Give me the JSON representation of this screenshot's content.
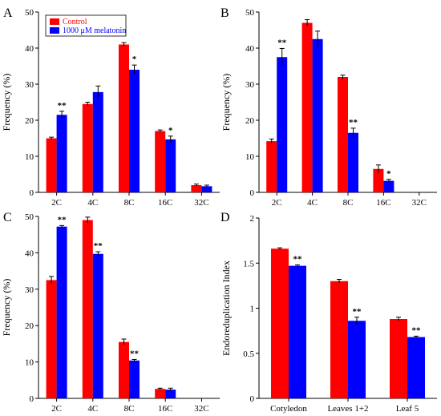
{
  "colors": {
    "control": "#ff0000",
    "melatonin": "#0000ff"
  },
  "legend": {
    "control_label": "Control",
    "melatonin_label": "1000 μM melatonin"
  },
  "chart_data": [
    {
      "panel": "A",
      "type": "bar",
      "ylabel": "Frequency (%)",
      "ylim": [
        0,
        50
      ],
      "yticks": [
        0,
        10,
        20,
        30,
        40,
        50
      ],
      "categories": [
        "2C",
        "4C",
        "8C",
        "16C",
        "32C"
      ],
      "series": [
        {
          "name": "Control",
          "values": [
            15,
            24.5,
            41,
            17,
            2
          ],
          "errors": [
            0.3,
            0.5,
            0.5,
            0.3,
            0.3
          ]
        },
        {
          "name": "1000 μM melatonin",
          "values": [
            21.5,
            27.8,
            34,
            14.7,
            1.7
          ],
          "errors": [
            1.0,
            1.7,
            1.3,
            0.9,
            0.3
          ]
        }
      ],
      "significance": [
        "**",
        "",
        "*",
        "*",
        ""
      ]
    },
    {
      "panel": "B",
      "type": "bar",
      "ylabel": "Frequency (%)",
      "ylim": [
        0,
        50
      ],
      "yticks": [
        0,
        10,
        20,
        30,
        40,
        50
      ],
      "categories": [
        "2C",
        "4C",
        "8C",
        "16C",
        "32C"
      ],
      "series": [
        {
          "name": "Control",
          "values": [
            14.2,
            47,
            32,
            6.5,
            0
          ],
          "errors": [
            0.6,
            0.9,
            0.5,
            1.1,
            0
          ]
        },
        {
          "name": "1000 μM melatonin",
          "values": [
            37.5,
            42.5,
            16.5,
            3.2,
            0
          ],
          "errors": [
            2.4,
            2.2,
            1.3,
            0.4,
            0
          ]
        }
      ],
      "significance": [
        "**",
        "",
        "**",
        "*",
        ""
      ]
    },
    {
      "panel": "C",
      "type": "bar",
      "ylabel": "Frequency (%)",
      "ylim": [
        0,
        50
      ],
      "yticks": [
        0,
        10,
        20,
        30,
        40,
        50
      ],
      "categories": [
        "2C",
        "4C",
        "8C",
        "16C",
        "32C"
      ],
      "series": [
        {
          "name": "Control",
          "values": [
            32.5,
            49,
            15.5,
            2.6,
            0
          ],
          "errors": [
            1.0,
            0.8,
            0.8,
            0.2,
            0
          ]
        },
        {
          "name": "1000 μM melatonin",
          "values": [
            47.2,
            39.7,
            10.4,
            2.4,
            0
          ],
          "errors": [
            0.3,
            0.6,
            0.3,
            0.4,
            0
          ]
        }
      ],
      "significance": [
        "**",
        "**",
        "**",
        "",
        ""
      ]
    },
    {
      "panel": "D",
      "type": "bar",
      "ylabel": "Endoreduplication Index",
      "ylim": [
        0,
        2
      ],
      "yticks": [
        0,
        0.5,
        1,
        1.5,
        2
      ],
      "categories": [
        "Cotyledon",
        "Leaves 1+2",
        "Leaf 5"
      ],
      "series": [
        {
          "name": "Control",
          "values": [
            1.66,
            1.3,
            0.88
          ],
          "errors": [
            0.01,
            0.02,
            0.02
          ]
        },
        {
          "name": "1000 μM melatonin",
          "values": [
            1.47,
            0.86,
            0.68
          ],
          "errors": [
            0.01,
            0.04,
            0.01
          ]
        }
      ],
      "significance": [
        "**",
        "**",
        "**"
      ]
    }
  ]
}
